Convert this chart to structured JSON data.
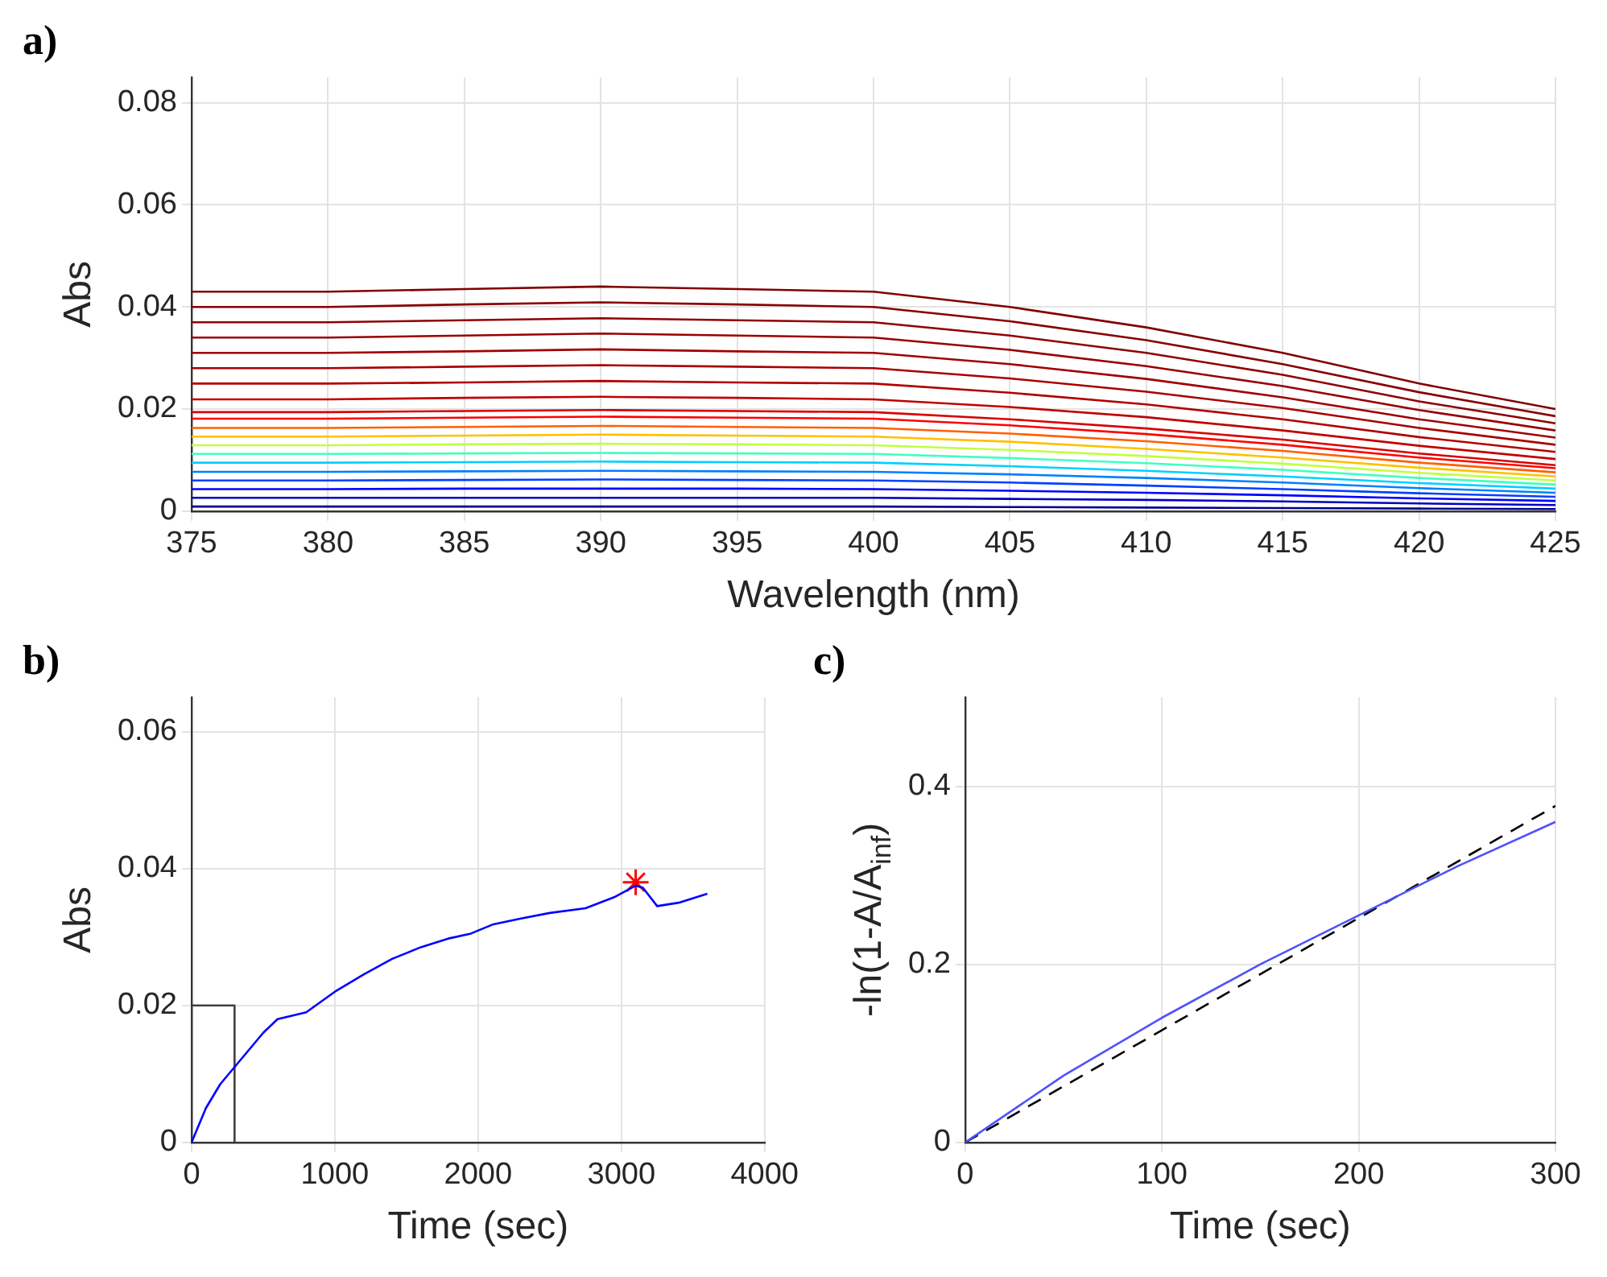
{
  "chart_data": [
    {
      "type": "line",
      "annotations": [
        "a)"
      ],
      "xlabel": "Wavelength (nm)",
      "ylabel": "Abs",
      "x": [
        375,
        380,
        385,
        390,
        395,
        400,
        405,
        410,
        415,
        420,
        425
      ],
      "xlim": [
        375,
        425
      ],
      "xticks": [
        375,
        380,
        385,
        390,
        395,
        400,
        405,
        410,
        415,
        420,
        425
      ],
      "ylim": [
        0,
        0.085
      ],
      "yticks": [
        0,
        0.02,
        0.04,
        0.06,
        0.08
      ],
      "grid": true,
      "series": [
        {
          "color": "#800000",
          "values": [
            0.043,
            0.043,
            0.0435,
            0.044,
            0.0435,
            0.043,
            0.04,
            0.036,
            0.031,
            0.025,
            0.02
          ]
        },
        {
          "color": "#880000",
          "values": [
            0.04,
            0.04,
            0.0405,
            0.0409,
            0.0405,
            0.04,
            0.0372,
            0.0335,
            0.0288,
            0.0233,
            0.0186
          ]
        },
        {
          "color": "#900000",
          "values": [
            0.037,
            0.037,
            0.0374,
            0.0378,
            0.0374,
            0.037,
            0.0344,
            0.031,
            0.0267,
            0.0215,
            0.0172
          ]
        },
        {
          "color": "#980000",
          "values": [
            0.034,
            0.034,
            0.0344,
            0.0348,
            0.0344,
            0.034,
            0.0316,
            0.0284,
            0.0245,
            0.0198,
            0.0158
          ]
        },
        {
          "color": "#a00000",
          "values": [
            0.031,
            0.031,
            0.0313,
            0.0317,
            0.0313,
            0.031,
            0.0288,
            0.0259,
            0.0223,
            0.018,
            0.0144
          ]
        },
        {
          "color": "#a80000",
          "values": [
            0.028,
            0.028,
            0.0283,
            0.0286,
            0.0283,
            0.028,
            0.026,
            0.0234,
            0.0202,
            0.0163,
            0.013
          ]
        },
        {
          "color": "#b00000",
          "values": [
            0.025,
            0.025,
            0.0252,
            0.0255,
            0.0252,
            0.025,
            0.0232,
            0.0209,
            0.018,
            0.0145,
            0.0116
          ]
        },
        {
          "color": "#c00000",
          "values": [
            0.0219,
            0.0219,
            0.0222,
            0.0224,
            0.0222,
            0.0219,
            0.0204,
            0.0184,
            0.0158,
            0.0128,
            0.0102
          ]
        },
        {
          "color": "#d80000",
          "values": [
            0.0194,
            0.0194,
            0.0196,
            0.0198,
            0.0196,
            0.0194,
            0.018,
            0.0162,
            0.014,
            0.0113,
            0.009
          ]
        },
        {
          "color": "#ff0000",
          "values": [
            0.0181,
            0.0181,
            0.0183,
            0.0185,
            0.0183,
            0.0181,
            0.0168,
            0.0151,
            0.013,
            0.0105,
            0.0084
          ]
        },
        {
          "color": "#ff6000",
          "values": [
            0.0163,
            0.0163,
            0.0165,
            0.0167,
            0.0165,
            0.0163,
            0.0152,
            0.0137,
            0.0118,
            0.0095,
            0.0076
          ]
        },
        {
          "color": "#ffc000",
          "values": [
            0.0146,
            0.0146,
            0.0148,
            0.015,
            0.0148,
            0.0146,
            0.0136,
            0.0122,
            0.0105,
            0.0085,
            0.0068
          ]
        },
        {
          "color": "#c0ff40",
          "values": [
            0.0129,
            0.0129,
            0.0131,
            0.0132,
            0.0131,
            0.0129,
            0.012,
            0.0108,
            0.0093,
            0.0075,
            0.006
          ]
        },
        {
          "color": "#40ffc0",
          "values": [
            0.0112,
            0.0112,
            0.0113,
            0.0114,
            0.0113,
            0.0112,
            0.0104,
            0.0094,
            0.0081,
            0.0065,
            0.0052
          ]
        },
        {
          "color": "#00d0ff",
          "values": [
            0.0095,
            0.0095,
            0.0096,
            0.0097,
            0.0096,
            0.0095,
            0.0088,
            0.0079,
            0.0068,
            0.0055,
            0.0044
          ]
        },
        {
          "color": "#0080ff",
          "values": [
            0.0077,
            0.0077,
            0.0078,
            0.0079,
            0.0078,
            0.0077,
            0.0072,
            0.0065,
            0.0056,
            0.0045,
            0.0036
          ]
        },
        {
          "color": "#0040ff",
          "values": [
            0.006,
            0.006,
            0.0061,
            0.0062,
            0.0061,
            0.006,
            0.0056,
            0.005,
            0.0043,
            0.0035,
            0.0028
          ]
        },
        {
          "color": "#0000ff",
          "values": [
            0.0043,
            0.0043,
            0.0044,
            0.0044,
            0.0044,
            0.0043,
            0.004,
            0.0036,
            0.0031,
            0.0025,
            0.002
          ]
        },
        {
          "color": "#0000c0",
          "values": [
            0.0026,
            0.0026,
            0.0026,
            0.0026,
            0.0026,
            0.0026,
            0.0024,
            0.0022,
            0.0019,
            0.0015,
            0.0012
          ]
        },
        {
          "color": "#000090",
          "values": [
            0.0009,
            0.0009,
            0.0009,
            0.0009,
            0.0009,
            0.0009,
            0.0008,
            0.0007,
            0.0006,
            0.0005,
            0.0004
          ]
        }
      ]
    },
    {
      "type": "line",
      "annotations": [
        "b)"
      ],
      "xlabel": "Time (sec)",
      "ylabel": "Abs",
      "xlim": [
        0,
        4000
      ],
      "xticks": [
        0,
        1000,
        2000,
        3000,
        4000
      ],
      "ylim": [
        0,
        0.065
      ],
      "yticks": [
        0,
        0.02,
        0.04,
        0.06
      ],
      "grid": true,
      "series": [
        {
          "color": "#0000ff",
          "x": [
            0,
            100,
            200,
            300,
            400,
            500,
            600,
            700,
            800,
            900,
            1000,
            1200,
            1400,
            1600,
            1800,
            1950,
            2100,
            2300,
            2500,
            2750,
            2950,
            3100,
            3150,
            3250,
            3400,
            3600
          ],
          "values": [
            0,
            0.005,
            0.0085,
            0.011,
            0.0135,
            0.016,
            0.018,
            0.0185,
            0.019,
            0.0205,
            0.022,
            0.0245,
            0.0268,
            0.0285,
            0.0298,
            0.0305,
            0.0318,
            0.0327,
            0.0335,
            0.0342,
            0.0358,
            0.0375,
            0.0372,
            0.0345,
            0.035,
            0.0363
          ]
        },
        {
          "color": "#404040",
          "x": [
            0,
            0,
            300,
            300
          ],
          "values": [
            0,
            0.02,
            0.02,
            0
          ]
        },
        {
          "type": "scatter",
          "color": "#ff0000",
          "marker": "cross",
          "x": [
            3100
          ],
          "values": [
            0.038
          ]
        }
      ]
    },
    {
      "type": "line",
      "annotations": [
        "c)"
      ],
      "xlabel": "Time (sec)",
      "ylabel": "-ln(1-A/A$_{inf}$)",
      "xlim": [
        0,
        300
      ],
      "xticks": [
        0,
        100,
        200,
        300
      ],
      "ylim": [
        0,
        0.5
      ],
      "yticks": [
        0,
        0.2,
        0.4
      ],
      "grid": true,
      "series": [
        {
          "color": "#5050ff",
          "x": [
            0,
            50,
            100,
            150,
            200,
            250,
            300
          ],
          "values": [
            0,
            0.075,
            0.14,
            0.2,
            0.255,
            0.31,
            0.36
          ]
        },
        {
          "color": "#000000",
          "line_style": "dashed",
          "x": [
            0,
            300
          ],
          "values": [
            0,
            0.378
          ]
        }
      ]
    }
  ]
}
